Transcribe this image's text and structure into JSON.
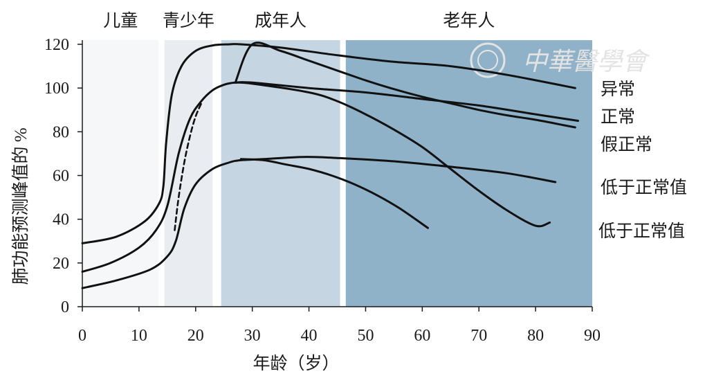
{
  "chart_data": {
    "type": "line",
    "title": "",
    "xlabel": "年龄（岁）",
    "ylabel": "肺功能预测峰值的 %",
    "xlim": [
      0,
      90
    ],
    "ylim": [
      0,
      120
    ],
    "x_ticks": [
      "0",
      "10",
      "20",
      "30",
      "40",
      "50",
      "60",
      "70",
      "80",
      "90"
    ],
    "y_ticks": [
      "0",
      "20",
      "40",
      "60",
      "80",
      "100",
      "120"
    ],
    "grid": false,
    "legend": "none",
    "life_stages": [
      {
        "label": "儿童",
        "x_range": [
          0,
          13.5
        ],
        "color": "#f6f7f9"
      },
      {
        "label": "青少年",
        "x_range": [
          14.5,
          23
        ],
        "color": "#e9edf1"
      },
      {
        "label": "成年人",
        "x_range": [
          24.5,
          45.5
        ],
        "color": "#c5d6e2"
      },
      {
        "label": "老年人",
        "x_range": [
          46.5,
          90
        ],
        "color": "#8fb2c8"
      }
    ],
    "series": [
      {
        "name": "异常",
        "style": "solid",
        "x": [
          0,
          6,
          11,
          13.5,
          14.3,
          14.8,
          15.8,
          17.5,
          20,
          23,
          26,
          28,
          35,
          45,
          55,
          65,
          75,
          87
        ],
        "y": [
          29,
          32,
          39,
          47,
          55,
          75,
          97,
          110,
          117,
          119.5,
          120,
          120,
          118.5,
          115,
          112,
          110,
          106,
          100
        ]
      },
      {
        "name": "正常",
        "style": "solid",
        "x": [
          0,
          5,
          10,
          13,
          15,
          17,
          19,
          21,
          23,
          25,
          27,
          30,
          40,
          50,
          60,
          70,
          80,
          87.5
        ],
        "y": [
          16,
          20,
          27,
          35,
          46,
          70,
          86,
          94,
          99,
          101.5,
          102.5,
          102.5,
          100,
          98,
          95,
          92,
          88,
          85
        ]
      },
      {
        "name": "假正常",
        "style": "solid",
        "x": [
          27,
          30,
          35,
          40,
          45,
          50,
          55,
          60,
          65,
          70,
          75,
          80,
          85,
          87
        ],
        "y": [
          102.5,
          120,
          117,
          112.5,
          108,
          103.5,
          99.5,
          96,
          93,
          90,
          87.5,
          85.5,
          83,
          82
        ]
      },
      {
        "name": "低于正常值",
        "style": "solid",
        "x": [
          0,
          6,
          12,
          15,
          16.5,
          18,
          20,
          23,
          26,
          28,
          32,
          39,
          45,
          55,
          65,
          75,
          83.5
        ],
        "y": [
          8.5,
          12,
          17,
          23,
          30,
          45,
          56,
          63,
          66,
          67,
          67.5,
          68.5,
          68,
          66.5,
          64,
          61,
          57
        ]
      },
      {
        "name": "低于正常值",
        "style": "solid",
        "x": [
          27,
          30,
          40,
          45,
          50,
          55,
          60,
          65,
          70,
          75,
          80,
          82.5
        ],
        "y": [
          102.5,
          102,
          98,
          94,
          88,
          81,
          73,
          63,
          53,
          44,
          37,
          38.5
        ]
      },
      {
        "name": "",
        "style": "solid",
        "x": [
          28,
          32,
          36,
          40,
          44,
          48,
          52,
          56,
          61
        ],
        "y": [
          67.5,
          67,
          65,
          63,
          60,
          56,
          51,
          45,
          36
        ]
      },
      {
        "name": "",
        "style": "dashed",
        "x": [
          16.3,
          17,
          18,
          19,
          20,
          21
        ],
        "y": [
          35,
          50,
          66,
          78,
          87,
          93
        ]
      }
    ],
    "watermark": "中華醫學會"
  }
}
